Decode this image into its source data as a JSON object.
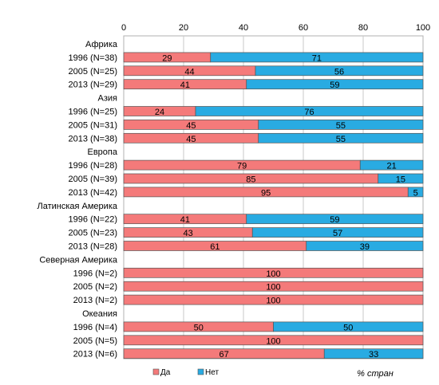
{
  "chart_data": {
    "type": "bar",
    "orientation": "horizontal",
    "stacked": true,
    "xlabel": "% стран",
    "xlim": [
      0,
      100
    ],
    "xticks": [
      0,
      20,
      40,
      60,
      80,
      100
    ],
    "legend": {
      "position": "bottom-left"
    },
    "groups": [
      {
        "name": "Африка",
        "rows": [
          {
            "label": "1996 (N=38)",
            "values": [
              29,
              71
            ]
          },
          {
            "label": "2005 (N=25)",
            "values": [
              44,
              56
            ]
          },
          {
            "label": "2013 (N=29)",
            "values": [
              41,
              59
            ]
          }
        ]
      },
      {
        "name": "Азия",
        "rows": [
          {
            "label": "1996 (N=25)",
            "values": [
              24,
              76
            ]
          },
          {
            "label": "2005 (N=31)",
            "values": [
              45,
              55
            ]
          },
          {
            "label": "2013 (N=38)",
            "values": [
              45,
              55
            ]
          }
        ]
      },
      {
        "name": "Европа",
        "rows": [
          {
            "label": "1996 (N=28)",
            "values": [
              79,
              21
            ]
          },
          {
            "label": "2005 (N=39)",
            "values": [
              85,
              15
            ]
          },
          {
            "label": "2013 (N=42)",
            "values": [
              95,
              5
            ]
          }
        ]
      },
      {
        "name": "Латинская Америка",
        "rows": [
          {
            "label": "1996 (N=22)",
            "values": [
              41,
              59
            ]
          },
          {
            "label": "2005 (N=23)",
            "values": [
              43,
              57
            ]
          },
          {
            "label": "2013 (N=28)",
            "values": [
              61,
              39
            ]
          }
        ]
      },
      {
        "name": "Северная Америка",
        "rows": [
          {
            "label": "1996 (N=2)",
            "values": [
              100,
              0
            ]
          },
          {
            "label": "2005 (N=2)",
            "values": [
              100,
              0
            ]
          },
          {
            "label": "2013 (N=2)",
            "values": [
              100,
              0
            ]
          }
        ]
      },
      {
        "name": "Океания",
        "rows": [
          {
            "label": "1996 (N=4)",
            "values": [
              50,
              50
            ]
          },
          {
            "label": "2005 (N=5)",
            "values": [
              100,
              0
            ]
          },
          {
            "label": "2013 (N=6)",
            "values": [
              67,
              33
            ]
          }
        ]
      }
    ],
    "series": [
      {
        "name": "Да",
        "color": "#f47a7a"
      },
      {
        "name": "Нет",
        "color": "#29abe2"
      }
    ]
  }
}
